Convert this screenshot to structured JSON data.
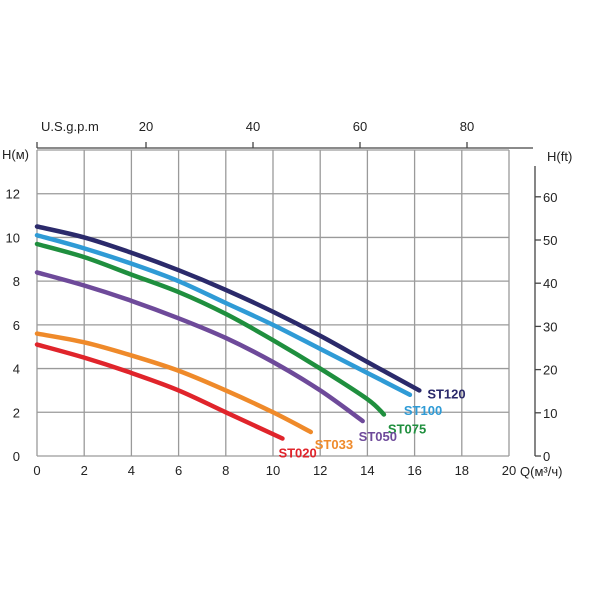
{
  "chart_data": {
    "type": "line",
    "title": "",
    "xlabel": "Q(м³/ч)",
    "ylabel": "H(м)",
    "y2label": "H(ft)",
    "x2label": "U.S.g.p.m",
    "xlim": [
      0,
      20
    ],
    "ylim": [
      0,
      14
    ],
    "y2lim": [
      0,
      65
    ],
    "x2lim": [
      0,
      88
    ],
    "grid": true,
    "x_ticks": [
      "0",
      "2",
      "4",
      "6",
      "8",
      "10",
      "12",
      "14",
      "16",
      "18",
      "20"
    ],
    "y_ticks": [
      "0",
      "2",
      "4",
      "6",
      "8",
      "10",
      "12"
    ],
    "y2_ticks": [
      "0",
      "10",
      "20",
      "30",
      "40",
      "50",
      "60"
    ],
    "x2_ticks": [
      "20",
      "40",
      "60",
      "80"
    ],
    "series": [
      {
        "name": "ST120",
        "color": "#2b2a6b",
        "x": [
          0,
          2,
          4,
          6,
          8,
          10,
          12,
          14,
          16.2
        ],
        "y": [
          10.5,
          10.0,
          9.3,
          8.5,
          7.6,
          6.6,
          5.5,
          4.3,
          3.0
        ]
      },
      {
        "name": "ST100",
        "color": "#2f9bd6",
        "x": [
          0,
          2,
          4,
          6,
          8,
          10,
          12,
          14,
          15.8
        ],
        "y": [
          10.1,
          9.5,
          8.8,
          8.0,
          7.0,
          6.0,
          4.9,
          3.8,
          2.8
        ]
      },
      {
        "name": "ST075",
        "color": "#1f8f3e",
        "x": [
          0,
          2,
          4,
          6,
          8,
          10,
          12,
          14,
          14.7
        ],
        "y": [
          9.7,
          9.1,
          8.3,
          7.5,
          6.5,
          5.3,
          4.0,
          2.6,
          1.9
        ]
      },
      {
        "name": "ST050",
        "color": "#6e4a9a",
        "x": [
          0,
          2,
          4,
          6,
          8,
          10,
          12,
          13.8
        ],
        "y": [
          8.4,
          7.8,
          7.1,
          6.3,
          5.4,
          4.3,
          3.0,
          1.6
        ]
      },
      {
        "name": "ST033",
        "color": "#ef8a2a",
        "x": [
          0,
          2,
          4,
          6,
          8,
          10,
          11.6
        ],
        "y": [
          5.6,
          5.2,
          4.6,
          3.9,
          3.0,
          2.0,
          1.1
        ]
      },
      {
        "name": "ST020",
        "color": "#e0242b",
        "x": [
          0,
          2,
          4,
          6,
          8,
          10.4
        ],
        "y": [
          5.1,
          4.5,
          3.8,
          3.0,
          2.0,
          0.8
        ]
      }
    ]
  }
}
